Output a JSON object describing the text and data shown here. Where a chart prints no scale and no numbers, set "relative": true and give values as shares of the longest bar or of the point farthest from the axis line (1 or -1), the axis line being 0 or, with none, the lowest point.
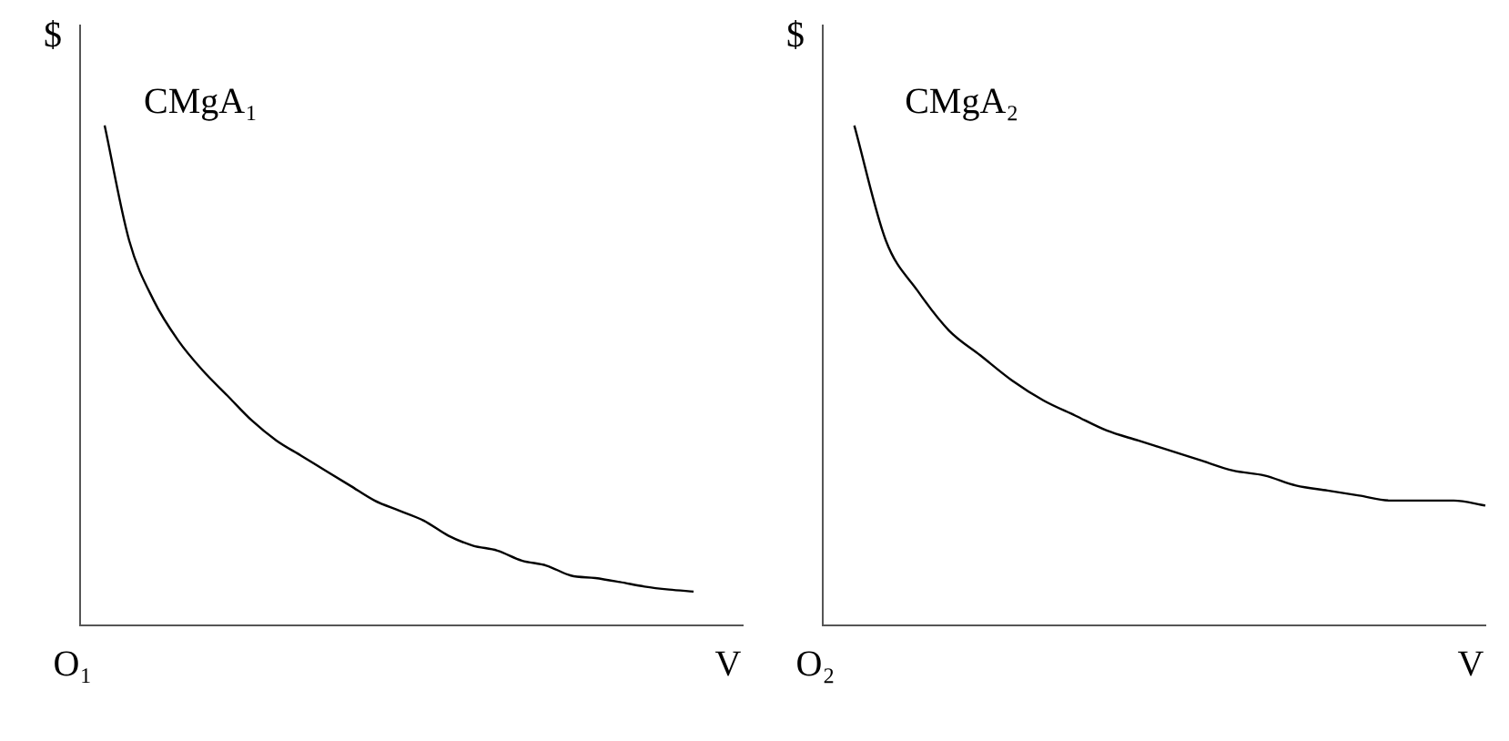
{
  "chart_data": [
    {
      "type": "line",
      "relative": true,
      "xlabel": "V",
      "ylabel": "$",
      "annotations": [
        "O₁"
      ],
      "grid": false,
      "marker": "none",
      "line_style": "solid",
      "categories": [
        null,
        null,
        null,
        null,
        null,
        null,
        null,
        null,
        null,
        null,
        null,
        null,
        null,
        null,
        null,
        null,
        null,
        null,
        null,
        null,
        null,
        null,
        null,
        null,
        null,
        null,
        null,
        null
      ],
      "series": [
        {
          "name": "CMgA₁",
          "color": "#000000",
          "values": [
            null,
            1,
            0.77,
            0.65,
            0.57,
            0.51,
            0.46,
            0.41,
            0.37,
            0.34,
            0.31,
            0.28,
            0.25,
            0.23,
            0.21,
            0.18,
            0.16,
            0.15,
            0.13,
            0.12,
            0.1,
            0.095,
            0.087,
            0.078,
            0.072,
            0.068,
            null,
            null
          ]
        }
      ]
    },
    {
      "type": "line",
      "relative": true,
      "xlabel": "V",
      "ylabel": "$",
      "annotations": [
        "O₂"
      ],
      "grid": false,
      "marker": "none",
      "line_style": "solid",
      "categories": [
        null,
        null,
        null,
        null,
        null,
        null,
        null,
        null,
        null,
        null,
        null,
        null,
        null,
        null,
        null,
        null,
        null,
        null,
        null,
        null,
        null,
        null
      ],
      "series": [
        {
          "name": "CMgA₂",
          "color": "#000000",
          "values": [
            null,
            1,
            0.77,
            0.67,
            0.59,
            0.54,
            0.49,
            0.45,
            0.42,
            0.39,
            0.37,
            0.35,
            0.33,
            0.31,
            0.3,
            0.28,
            0.27,
            0.26,
            0.25,
            0.25,
            0.25,
            0.24
          ]
        }
      ]
    }
  ]
}
